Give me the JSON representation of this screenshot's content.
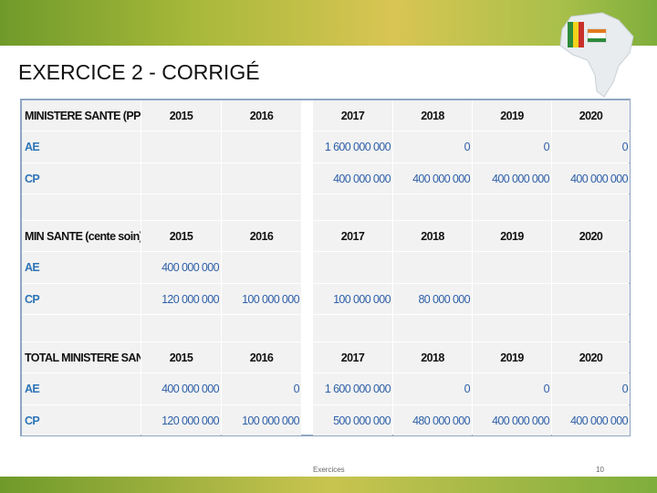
{
  "title": "EXERCICE 2 - CORRIGÉ",
  "tables": [
    {
      "header": [
        "MINISTERE SANTE (PPP)",
        "2015",
        "2016",
        "2017",
        "2018",
        "2019",
        "2020"
      ],
      "rows": [
        [
          "AE",
          null,
          null,
          "1 600 000 000",
          "0",
          "0",
          "0"
        ],
        [
          "CP",
          null,
          null,
          "400 000 000",
          "400 000 000",
          "400 000 000",
          "400 000 000"
        ]
      ]
    },
    {
      "header": [
        "MIN SANTE (cente soin)",
        "2015",
        "2016",
        "2017",
        "2018",
        "2019",
        "2020"
      ],
      "rows": [
        [
          "AE",
          "400 000 000",
          null,
          null,
          null,
          null,
          null
        ],
        [
          "CP",
          "120 000 000",
          "100 000 000",
          "100 000 000",
          "80 000 000",
          null,
          null
        ]
      ]
    },
    {
      "header": [
        "TOTAL MINISTERE SANTE",
        "2015",
        "2016",
        "2017",
        "2018",
        "2019",
        "2020"
      ],
      "rows": [
        [
          "AE",
          "400 000 000",
          "0",
          "1 600 000 000",
          "0",
          "0",
          "0"
        ],
        [
          "CP",
          "120 000 000",
          "100 000 000",
          "500 000 000",
          "480 000 000",
          "400 000 000",
          "400 000 000"
        ]
      ]
    }
  ],
  "footer": {
    "label": "Exercices",
    "page": "10"
  }
}
